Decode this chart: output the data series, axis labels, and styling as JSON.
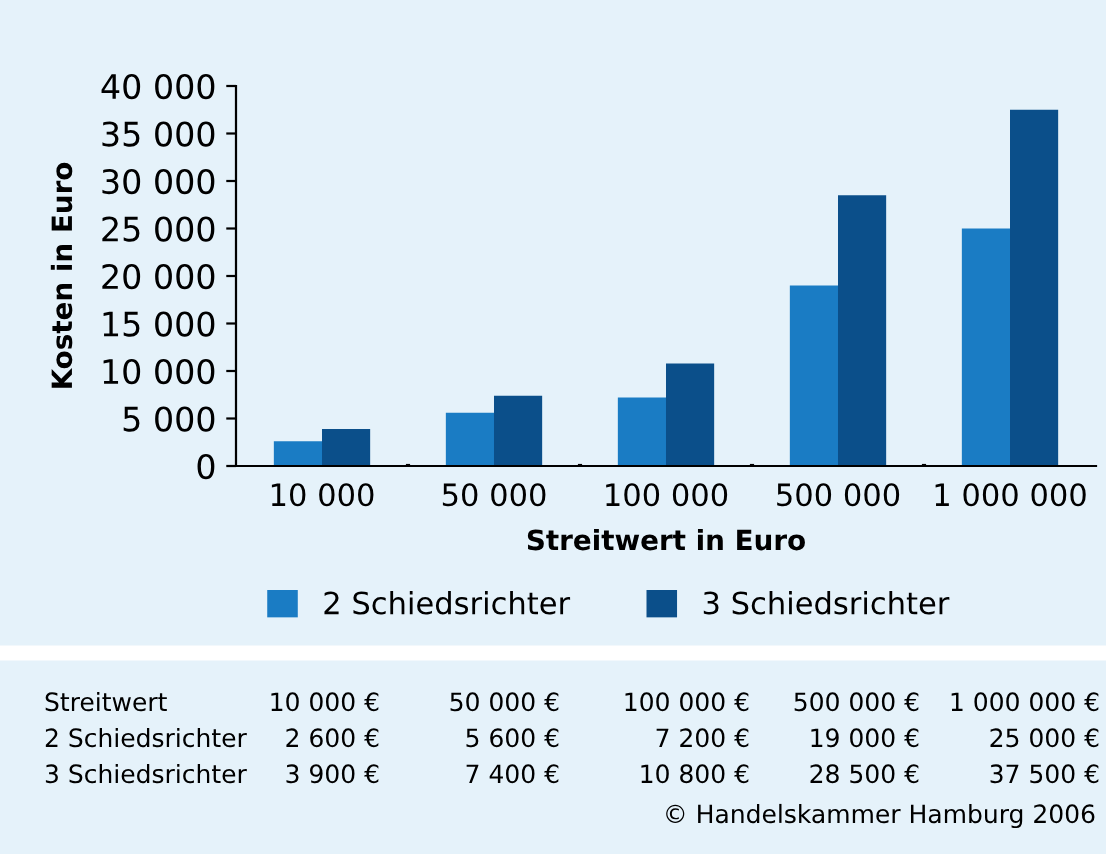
{
  "chart_data": {
    "type": "bar",
    "xlabel": "Streitwert in Euro",
    "ylabel": "Kosten in Euro",
    "categories": [
      "10 000",
      "50 000",
      "100 000",
      "500 000",
      "1 000 000"
    ],
    "series": [
      {
        "name": "2 Schiedsrichter",
        "color": "#1a7cc4",
        "values": [
          2600,
          5600,
          7200,
          19000,
          25000
        ],
        "value_labels": [
          "2 600 €",
          "5 600 €",
          "7 200 €",
          "19 000 €",
          "25 000 €"
        ]
      },
      {
        "name": "3 Schiedsrichter",
        "color": "#0b4f8a",
        "values": [
          3900,
          7400,
          10800,
          28500,
          37500
        ],
        "value_labels": [
          "3 900 €",
          "7 400 €",
          "10 800 €",
          "28 500 €",
          "37 500 €"
        ]
      }
    ],
    "ylim": [
      0,
      40000
    ],
    "yticks": [
      {
        "value": 0,
        "label": "0"
      },
      {
        "value": 5000,
        "label": "5 000"
      },
      {
        "value": 10000,
        "label": "10 000"
      },
      {
        "value": 15000,
        "label": "15 000"
      },
      {
        "value": 20000,
        "label": "20 000"
      },
      {
        "value": 25000,
        "label": "25 000"
      },
      {
        "value": 30000,
        "label": "30 000"
      },
      {
        "value": 35000,
        "label": "35 000"
      },
      {
        "value": 40000,
        "label": "40 000"
      }
    ],
    "grid": false,
    "legend": "bottom",
    "annotations": [
      "Streitwert",
      "10 000 €",
      "50 000 €",
      "100 000 €",
      "500 000 €",
      "1 000 000 €",
      "© Handelskammer Hamburg 2006"
    ]
  }
}
